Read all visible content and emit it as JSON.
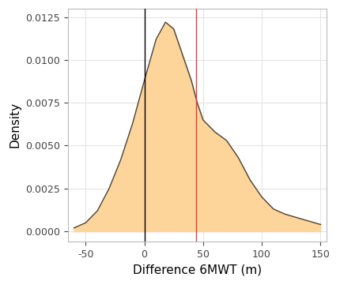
{
  "chart_data": {
    "type": "area",
    "x_label": "Difference 6MWT (m)",
    "y_label": "Density",
    "x": [
      -60,
      -50,
      -40,
      -30,
      -20,
      -10,
      0,
      10,
      18,
      25,
      30,
      40,
      45,
      50,
      60,
      70,
      80,
      90,
      100,
      110,
      120,
      130,
      140,
      150
    ],
    "values": [
      0.0002,
      0.0005,
      0.0012,
      0.0025,
      0.0042,
      0.0063,
      0.0088,
      0.0112,
      0.0122,
      0.0118,
      0.0108,
      0.0088,
      0.0075,
      0.0065,
      0.0058,
      0.0053,
      0.0043,
      0.003,
      0.002,
      0.0013,
      0.001,
      0.0008,
      0.0006,
      0.0004
    ],
    "color": "#fdd49a",
    "vlines": [
      {
        "x": 0,
        "color": "#000000"
      },
      {
        "x": 44,
        "color": "#e8393c"
      }
    ],
    "xlim": [
      -65,
      155
    ],
    "xticks": [
      -50,
      0,
      50,
      100,
      150
    ],
    "ylim": [
      -0.0006,
      0.013
    ],
    "yticks": [
      {
        "value": 0,
        "label": "0.0000"
      },
      {
        "value": 0.0025,
        "label": "0.0025"
      },
      {
        "value": 0.005,
        "label": "0.0050"
      },
      {
        "value": 0.0075,
        "label": "0.0075"
      },
      {
        "value": 0.01,
        "label": "0.0100"
      },
      {
        "value": 0.0125,
        "label": "0.0125"
      }
    ],
    "grid": true
  }
}
